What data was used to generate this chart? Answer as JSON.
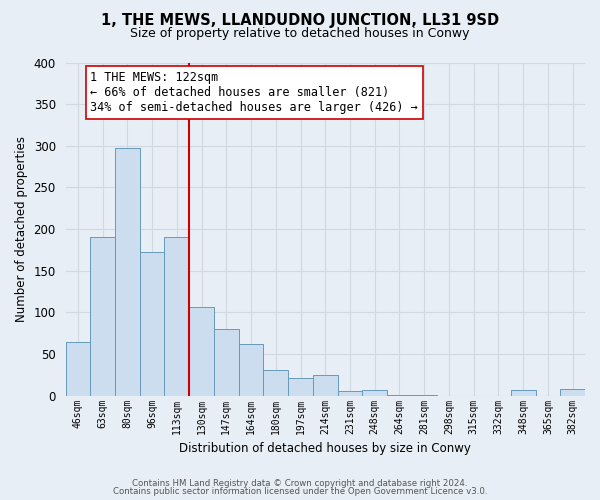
{
  "title": "1, THE MEWS, LLANDUDNO JUNCTION, LL31 9SD",
  "subtitle": "Size of property relative to detached houses in Conwy",
  "xlabel": "Distribution of detached houses by size in Conwy",
  "ylabel": "Number of detached properties",
  "bar_labels": [
    "46sqm",
    "63sqm",
    "80sqm",
    "96sqm",
    "113sqm",
    "130sqm",
    "147sqm",
    "164sqm",
    "180sqm",
    "197sqm",
    "214sqm",
    "231sqm",
    "248sqm",
    "264sqm",
    "281sqm",
    "298sqm",
    "315sqm",
    "332sqm",
    "348sqm",
    "365sqm",
    "382sqm"
  ],
  "bar_values": [
    65,
    190,
    297,
    172,
    190,
    106,
    80,
    62,
    31,
    21,
    25,
    6,
    7,
    1,
    1,
    0,
    0,
    0,
    7,
    0,
    8
  ],
  "bar_color": "#ccddef",
  "bar_edgecolor": "#6699bb",
  "vline_color": "#cc0000",
  "vline_x_idx": 5,
  "annotation_title": "1 THE MEWS: 122sqm",
  "annotation_line1": "← 66% of detached houses are smaller (821)",
  "annotation_line2": "34% of semi-detached houses are larger (426) →",
  "annotation_box_color": "white",
  "annotation_box_edgecolor": "#cc0000",
  "ylim": [
    0,
    400
  ],
  "yticks": [
    0,
    50,
    100,
    150,
    200,
    250,
    300,
    350,
    400
  ],
  "footer1": "Contains HM Land Registry data © Crown copyright and database right 2024.",
  "footer2": "Contains public sector information licensed under the Open Government Licence v3.0.",
  "bg_color": "#e8eef5",
  "grid_color": "#d0d8e0"
}
